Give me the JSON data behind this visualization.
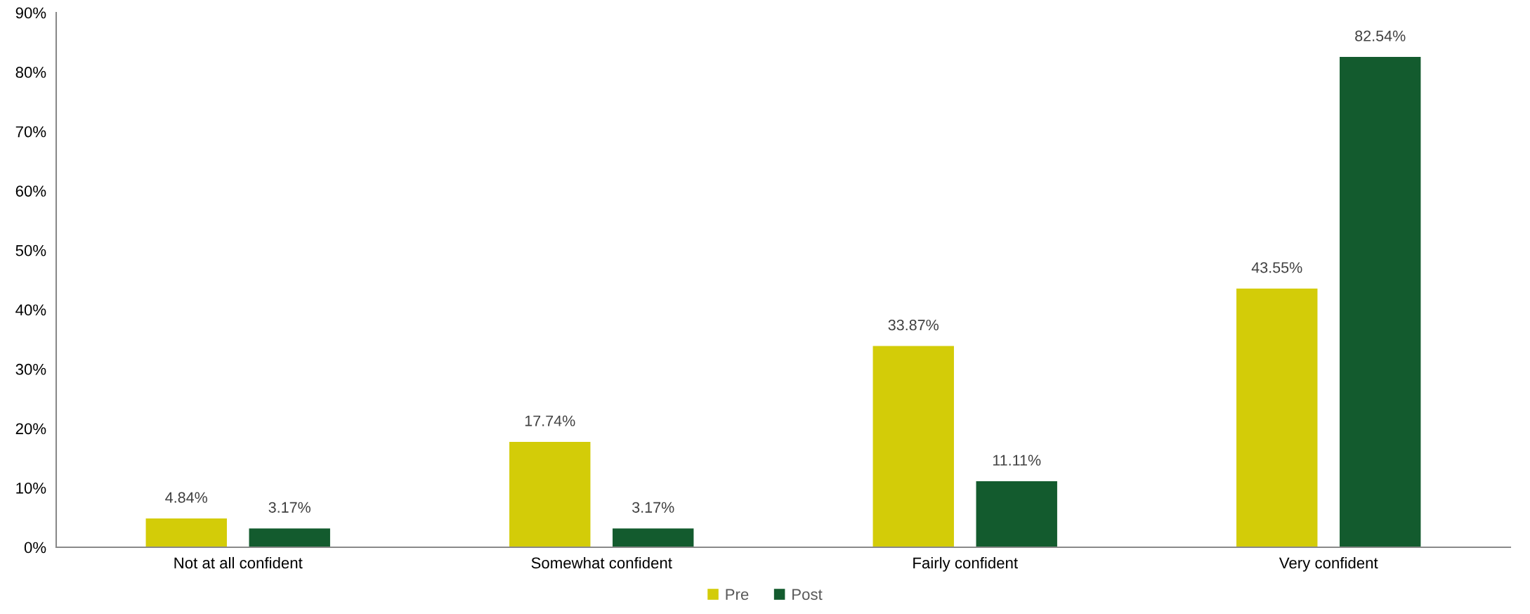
{
  "chart_data": {
    "type": "bar",
    "categories": [
      "Not at all confident",
      "Somewhat confident",
      "Fairly confident",
      "Very confident"
    ],
    "series": [
      {
        "name": "Pre",
        "color": "#d3cc08",
        "values": [
          4.84,
          17.74,
          33.87,
          43.55
        ],
        "value_labels": [
          "4.84%",
          "17.74%",
          "33.87%",
          "43.55%"
        ]
      },
      {
        "name": "Post",
        "color": "#135b2e",
        "values": [
          3.17,
          3.17,
          11.11,
          82.54
        ],
        "value_labels": [
          "3.17%",
          "3.17%",
          "11.11%",
          "82.54%"
        ]
      }
    ],
    "ylim": [
      0,
      90
    ],
    "yticks": [
      {
        "value": 0,
        "label": "0%"
      },
      {
        "value": 10,
        "label": "10%"
      },
      {
        "value": 20,
        "label": "20%"
      },
      {
        "value": 30,
        "label": "30%"
      },
      {
        "value": 40,
        "label": "40%"
      },
      {
        "value": 50,
        "label": "50%"
      },
      {
        "value": 60,
        "label": "60%"
      },
      {
        "value": 70,
        "label": "70%"
      },
      {
        "value": 80,
        "label": "80%"
      },
      {
        "value": 90,
        "label": "90%"
      }
    ],
    "grid": false,
    "legend": "bottom"
  }
}
